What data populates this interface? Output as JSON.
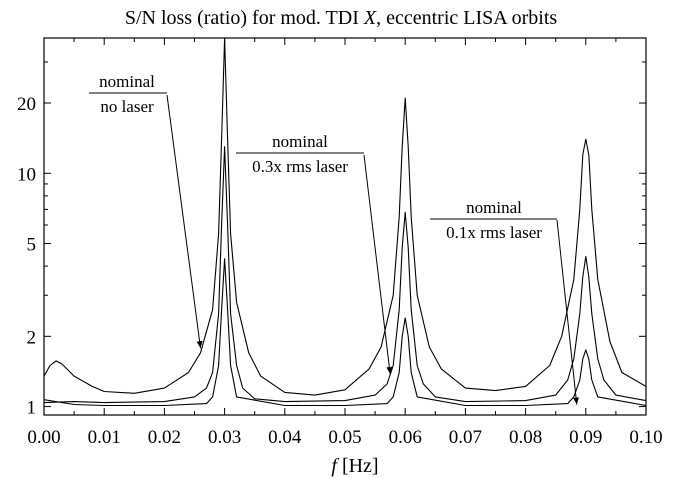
{
  "chart_data": {
    "type": "line",
    "title_prefix": "S/N loss (ratio) for mod. TDI ",
    "title_var": "X",
    "title_suffix": ", eccentric LISA orbits",
    "xlabel_var": "f",
    "xlabel_unit": " [Hz]",
    "xlim": [
      0.0,
      0.1
    ],
    "ylim": [
      0.92,
      38
    ],
    "yscale": "log",
    "grid": false,
    "x_ticks": [
      "0.00",
      "0.01",
      "0.02",
      "0.03",
      "0.04",
      "0.05",
      "0.06",
      "0.07",
      "0.08",
      "0.09",
      "0.10"
    ],
    "x_tick_values": [
      0.0,
      0.01,
      0.02,
      0.03,
      0.04,
      0.05,
      0.06,
      0.07,
      0.08,
      0.09,
      0.1
    ],
    "y_ticks": [
      "1",
      "2",
      "5",
      "10",
      "20"
    ],
    "y_tick_values": [
      1,
      2,
      5,
      10,
      20
    ],
    "series": [
      {
        "name": "nominal / no laser",
        "x": [
          0.0,
          0.001,
          0.002,
          0.003,
          0.005,
          0.008,
          0.01,
          0.015,
          0.02,
          0.024,
          0.026,
          0.028,
          0.029,
          0.0295,
          0.03,
          0.0305,
          0.031,
          0.032,
          0.034,
          0.036,
          0.04,
          0.045,
          0.05,
          0.054,
          0.056,
          0.058,
          0.059,
          0.0595,
          0.06,
          0.0605,
          0.061,
          0.062,
          0.064,
          0.066,
          0.07,
          0.075,
          0.08,
          0.084,
          0.086,
          0.088,
          0.089,
          0.0895,
          0.09,
          0.0905,
          0.091,
          0.092,
          0.094,
          0.096,
          0.1
        ],
        "y": [
          1.35,
          1.5,
          1.57,
          1.52,
          1.35,
          1.22,
          1.16,
          1.14,
          1.2,
          1.4,
          1.7,
          2.6,
          5.5,
          14,
          38,
          14,
          5.5,
          2.8,
          1.7,
          1.35,
          1.15,
          1.12,
          1.18,
          1.45,
          1.8,
          3.0,
          6.5,
          13,
          21,
          13,
          6.5,
          3.0,
          1.8,
          1.45,
          1.2,
          1.17,
          1.22,
          1.5,
          2.0,
          3.5,
          7.0,
          12,
          14,
          12,
          7.0,
          3.5,
          1.9,
          1.4,
          1.22
        ]
      },
      {
        "name": "nominal / 0.3x rms laser",
        "x": [
          0.0,
          0.005,
          0.01,
          0.02,
          0.025,
          0.027,
          0.028,
          0.029,
          0.0295,
          0.03,
          0.0305,
          0.031,
          0.032,
          0.033,
          0.035,
          0.04,
          0.05,
          0.055,
          0.057,
          0.058,
          0.059,
          0.0595,
          0.06,
          0.0605,
          0.061,
          0.062,
          0.063,
          0.065,
          0.07,
          0.08,
          0.085,
          0.087,
          0.088,
          0.089,
          0.0895,
          0.09,
          0.0905,
          0.091,
          0.092,
          0.093,
          0.095,
          0.1
        ],
        "y": [
          1.04,
          1.05,
          1.04,
          1.05,
          1.1,
          1.2,
          1.4,
          2.5,
          6,
          13,
          6,
          2.5,
          1.5,
          1.2,
          1.08,
          1.05,
          1.06,
          1.12,
          1.25,
          1.5,
          2.6,
          4.8,
          6.8,
          4.8,
          2.6,
          1.5,
          1.25,
          1.1,
          1.05,
          1.06,
          1.12,
          1.3,
          1.6,
          2.5,
          3.6,
          4.4,
          3.6,
          2.5,
          1.6,
          1.3,
          1.12,
          1.06
        ]
      },
      {
        "name": "nominal / 0.1x rms laser",
        "x": [
          0.0,
          0.005,
          0.01,
          0.02,
          0.027,
          0.028,
          0.029,
          0.0295,
          0.03,
          0.0305,
          0.031,
          0.032,
          0.04,
          0.05,
          0.057,
          0.058,
          0.059,
          0.0595,
          0.06,
          0.0605,
          0.061,
          0.062,
          0.07,
          0.08,
          0.087,
          0.088,
          0.089,
          0.0895,
          0.09,
          0.0905,
          0.091,
          0.092,
          0.1
        ],
        "y": [
          1.07,
          1.02,
          1.01,
          1.01,
          1.03,
          1.1,
          1.5,
          2.6,
          4.3,
          2.6,
          1.5,
          1.1,
          1.01,
          1.01,
          1.03,
          1.1,
          1.4,
          2.0,
          2.4,
          2.0,
          1.4,
          1.1,
          1.01,
          1.01,
          1.03,
          1.1,
          1.3,
          1.6,
          1.75,
          1.6,
          1.3,
          1.1,
          1.01
        ]
      }
    ],
    "annotations": [
      {
        "numerator": "nominal",
        "denominator": "no laser",
        "arrow_to": [
          0.026,
          1.78
        ]
      },
      {
        "numerator": "nominal",
        "denominator": "0.3x rms laser",
        "arrow_to": [
          0.0575,
          1.38
        ]
      },
      {
        "numerator": "nominal",
        "denominator": "0.1x rms laser",
        "arrow_to": [
          0.0885,
          1.02
        ]
      }
    ]
  }
}
